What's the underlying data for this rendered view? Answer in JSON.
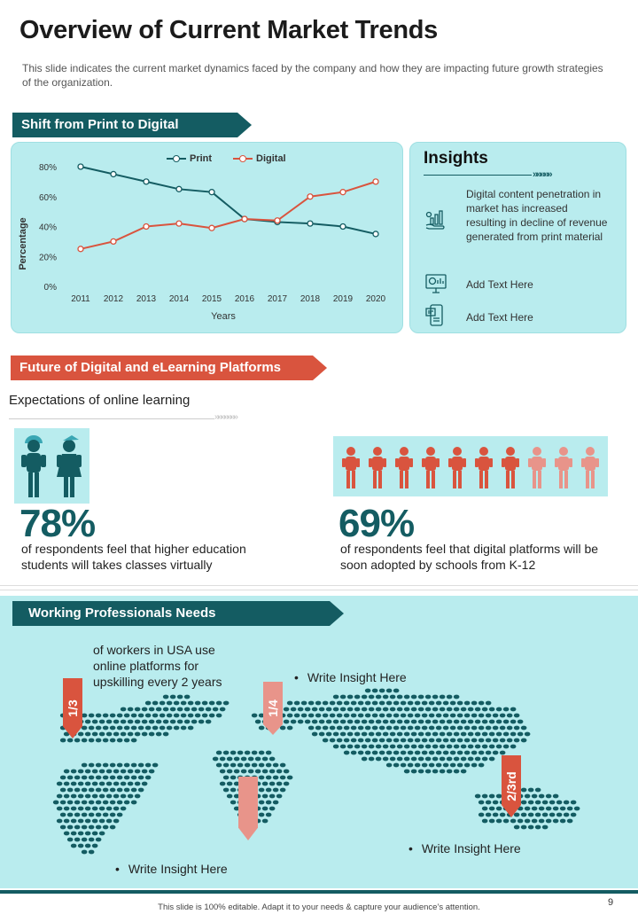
{
  "header": {
    "title": "Overview of Current Market Trends",
    "subtitle": "This slide indicates the current market dynamics faced by the company and how they are impacting future growth strategies of the organization."
  },
  "section1": {
    "banner": "Shift from Print to Digital",
    "chart_data": {
      "type": "line",
      "title": "",
      "xlabel": "Years",
      "ylabel": "Percentage",
      "categories": [
        "2011",
        "2012",
        "2013",
        "2014",
        "2015",
        "2016",
        "2017",
        "2018",
        "2019",
        "2020"
      ],
      "yticks": [
        "0%",
        "20%",
        "40%",
        "60%",
        "80%"
      ],
      "ylim": [
        0,
        80
      ],
      "legend_position": "top",
      "series": [
        {
          "name": "Print",
          "color": "#145c62",
          "values": [
            80,
            75,
            70,
            65,
            63,
            45,
            43,
            42,
            40,
            35
          ]
        },
        {
          "name": "Digital",
          "color": "#d9543e",
          "values": [
            25,
            30,
            40,
            42,
            39,
            45,
            44,
            60,
            63,
            70
          ]
        }
      ]
    },
    "insights": {
      "title": "Insights",
      "arrows": "»»»»»",
      "items": [
        {
          "icon": "growth-chart-hand-icon",
          "text": "Digital content penetration in market has increased resulting in decline of revenue generated from print material"
        },
        {
          "icon": "monitor-analytics-icon",
          "text": "Add Text Here"
        },
        {
          "icon": "mobile-news-icon",
          "text": "Add Text Here"
        }
      ]
    }
  },
  "section2": {
    "banner": "Future of Digital and eLearning Platforms",
    "heading": "Expectations of online learning",
    "arrows": "»»»»»»»",
    "stat1": {
      "value": "78%",
      "text": "of respondents feel that higher education students will takes classes virtually"
    },
    "stat2": {
      "value": "69%",
      "text": "of respondents feel that digital platforms will be soon adopted by schools from K-12"
    }
  },
  "section3": {
    "banner": "Working Professionals  Needs",
    "workers_text": "of workers in USA use online platforms for upskilling every 2 years",
    "markers": [
      "1/3",
      "1/4",
      "2/3rd"
    ],
    "insights": [
      "Write Insight Here",
      "Write Insight Here",
      "Write Insight Here"
    ]
  },
  "footer": {
    "note": "This slide is 100% editable. Adapt it to your needs & capture your audience’s attention.",
    "page": "9"
  },
  "colors": {
    "teal": "#145c62",
    "red": "#d9543e",
    "light_red": "#e8948a",
    "panel": "#b9ecee"
  }
}
